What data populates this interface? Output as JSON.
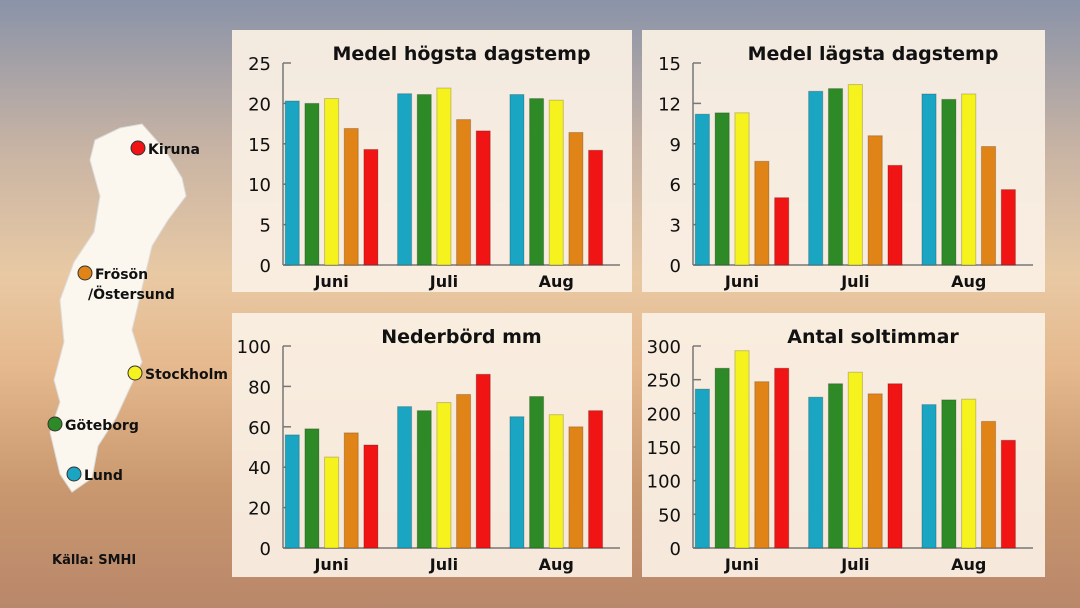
{
  "legend_map": {
    "cities": [
      {
        "name": "Kiruna",
        "color": "#f01414"
      },
      {
        "name": "Frösön",
        "name2": "/Östersund",
        "color": "#e08418"
      },
      {
        "name": "Stockholm",
        "color": "#f6f21e"
      },
      {
        "name": "Göteborg",
        "color": "#2d8a26"
      },
      {
        "name": "Lund",
        "color": "#1aa5c2"
      }
    ]
  },
  "source": "Källa: SMHI",
  "chart_data": [
    {
      "type": "bar",
      "title": "Medel högsta dagstemp",
      "categories": [
        "Juni",
        "Juli",
        "Aug"
      ],
      "ylim": [
        0,
        25
      ],
      "yticks": [
        0,
        5,
        10,
        15,
        20,
        25
      ],
      "series": [
        {
          "name": "Lund",
          "color": "#1aa5c2",
          "values": [
            20.3,
            21.2,
            21.1
          ]
        },
        {
          "name": "Göteborg",
          "color": "#2d8a26",
          "values": [
            20.0,
            21.1,
            20.6
          ]
        },
        {
          "name": "Stockholm",
          "color": "#f6f21e",
          "values": [
            20.6,
            21.9,
            20.4
          ]
        },
        {
          "name": "Frösön/Östersund",
          "color": "#e08418",
          "values": [
            16.9,
            18.0,
            16.4
          ]
        },
        {
          "name": "Kiruna",
          "color": "#f01414",
          "values": [
            14.3,
            16.6,
            14.2
          ]
        }
      ]
    },
    {
      "type": "bar",
      "title": "Medel lägsta dagstemp",
      "categories": [
        "Juni",
        "Juli",
        "Aug"
      ],
      "ylim": [
        0,
        15
      ],
      "yticks": [
        0,
        3,
        6,
        9,
        12,
        15
      ],
      "series": [
        {
          "name": "Lund",
          "color": "#1aa5c2",
          "values": [
            11.2,
            12.9,
            12.7
          ]
        },
        {
          "name": "Göteborg",
          "color": "#2d8a26",
          "values": [
            11.3,
            13.1,
            12.3
          ]
        },
        {
          "name": "Stockholm",
          "color": "#f6f21e",
          "values": [
            11.3,
            13.4,
            12.7
          ]
        },
        {
          "name": "Frösön/Östersund",
          "color": "#e08418",
          "values": [
            7.7,
            9.6,
            8.8
          ]
        },
        {
          "name": "Kiruna",
          "color": "#f01414",
          "values": [
            5.0,
            7.4,
            5.6
          ]
        }
      ]
    },
    {
      "type": "bar",
      "title": "Nederbörd mm",
      "categories": [
        "Juni",
        "Juli",
        "Aug"
      ],
      "ylim": [
        0,
        100
      ],
      "yticks": [
        0,
        20,
        40,
        60,
        80,
        100
      ],
      "series": [
        {
          "name": "Lund",
          "color": "#1aa5c2",
          "values": [
            56,
            70,
            65
          ]
        },
        {
          "name": "Göteborg",
          "color": "#2d8a26",
          "values": [
            59,
            68,
            75
          ]
        },
        {
          "name": "Stockholm",
          "color": "#f6f21e",
          "values": [
            45,
            72,
            66
          ]
        },
        {
          "name": "Frösön/Östersund",
          "color": "#e08418",
          "values": [
            57,
            76,
            60
          ]
        },
        {
          "name": "Kiruna",
          "color": "#f01414",
          "values": [
            51,
            86,
            68
          ]
        }
      ]
    },
    {
      "type": "bar",
      "title": "Antal soltimmar",
      "categories": [
        "Juni",
        "Juli",
        "Aug"
      ],
      "ylim": [
        0,
        300
      ],
      "yticks": [
        0,
        50,
        100,
        150,
        200,
        250,
        300
      ],
      "series": [
        {
          "name": "Lund",
          "color": "#1aa5c2",
          "values": [
            236,
            224,
            213
          ]
        },
        {
          "name": "Göteborg",
          "color": "#2d8a26",
          "values": [
            267,
            244,
            220
          ]
        },
        {
          "name": "Stockholm",
          "color": "#f6f21e",
          "values": [
            293,
            261,
            221
          ]
        },
        {
          "name": "Frösön/Östersund",
          "color": "#e08418",
          "values": [
            247,
            229,
            188
          ]
        },
        {
          "name": "Kiruna",
          "color": "#f01414",
          "values": [
            267,
            244,
            160
          ]
        }
      ]
    }
  ]
}
